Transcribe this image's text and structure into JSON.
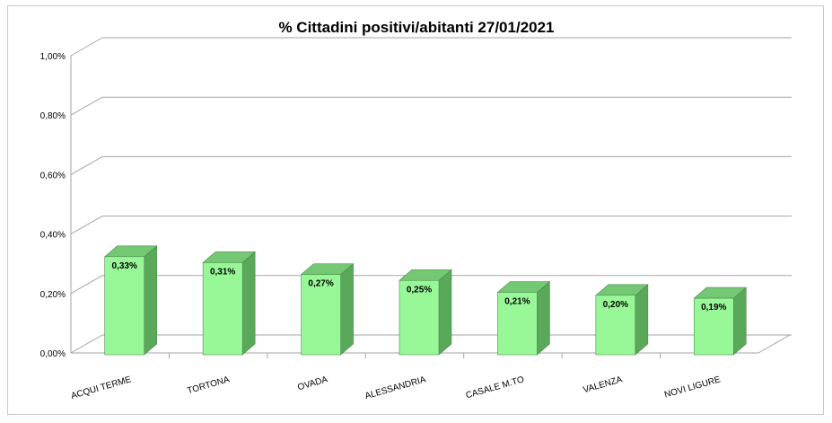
{
  "chart_data": {
    "type": "bar",
    "title": "% Cittadini positivi/abitanti 27/01/2021",
    "categories": [
      "ACQUI TERME",
      "TORTONA",
      "OVADA",
      "ALESSANDRIA",
      "CASALE M.TO",
      "VALENZA",
      "NOVI LIGURE"
    ],
    "values": [
      0.33,
      0.31,
      0.27,
      0.25,
      0.21,
      0.2,
      0.19
    ],
    "value_labels": [
      "0,33%",
      "0,31%",
      "0,27%",
      "0,25%",
      "0,21%",
      "0,20%",
      "0,19%"
    ],
    "ylim": [
      0,
      1.0
    ],
    "yticks": [
      0,
      0.2,
      0.4,
      0.6,
      0.8,
      1.0
    ],
    "ytick_labels": [
      "0,00%",
      "0,20%",
      "0,40%",
      "0,60%",
      "0,80%",
      "1,00%"
    ],
    "xlabel": "",
    "ylabel": "",
    "grid": true,
    "legend": "none",
    "style": "3d-column",
    "colors": {
      "bar_front": "#98f898",
      "bar_side": "#5aa85a",
      "bar_top": "#74c874",
      "bar_edge": "#4c8c4c",
      "gridline": "#a6a6a6"
    }
  }
}
